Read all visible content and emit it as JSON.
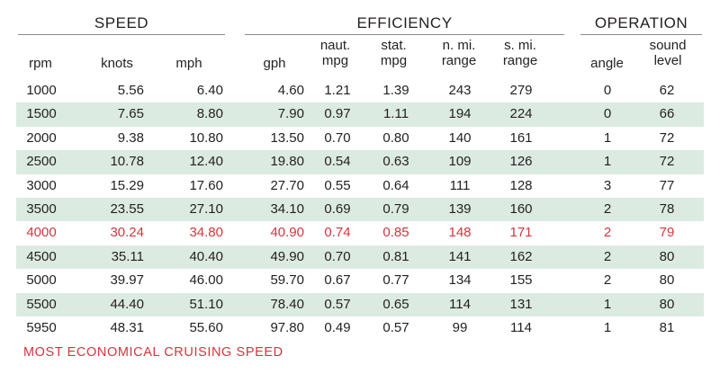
{
  "groups": {
    "speed": "SPEED",
    "efficiency": "EFFICIENCY",
    "operation": "OPERATION"
  },
  "columns": [
    {
      "key": "rpm",
      "label": "rpm"
    },
    {
      "key": "knots",
      "label": "knots"
    },
    {
      "key": "mph",
      "label": "mph"
    },
    {
      "key": "gph",
      "label": "gph"
    },
    {
      "key": "naut_mpg",
      "label": "naut.\nmpg"
    },
    {
      "key": "stat_mpg",
      "label": "stat.\nmpg"
    },
    {
      "key": "n_mi_range",
      "label": "n. mi.\nrange"
    },
    {
      "key": "s_mi_range",
      "label": "s. mi.\nrange"
    },
    {
      "key": "angle",
      "label": "angle"
    },
    {
      "key": "sound_level",
      "label": "sound\nlevel"
    }
  ],
  "rows": [
    [
      "1000",
      "5.56",
      "6.40",
      "4.60",
      "1.21",
      "1.39",
      "243",
      "279",
      "0",
      "62"
    ],
    [
      "1500",
      "7.65",
      "8.80",
      "7.90",
      "0.97",
      "1.11",
      "194",
      "224",
      "0",
      "66"
    ],
    [
      "2000",
      "9.38",
      "10.80",
      "13.50",
      "0.70",
      "0.80",
      "140",
      "161",
      "1",
      "72"
    ],
    [
      "2500",
      "10.78",
      "12.40",
      "19.80",
      "0.54",
      "0.63",
      "109",
      "126",
      "1",
      "72"
    ],
    [
      "3000",
      "15.29",
      "17.60",
      "27.70",
      "0.55",
      "0.64",
      "111",
      "128",
      "3",
      "77"
    ],
    [
      "3500",
      "23.55",
      "27.10",
      "34.10",
      "0.69",
      "0.79",
      "139",
      "160",
      "2",
      "78"
    ],
    [
      "4000",
      "30.24",
      "34.80",
      "40.90",
      "0.74",
      "0.85",
      "148",
      "171",
      "2",
      "79"
    ],
    [
      "4500",
      "35.11",
      "40.40",
      "49.90",
      "0.70",
      "0.81",
      "141",
      "162",
      "2",
      "80"
    ],
    [
      "5000",
      "39.97",
      "46.00",
      "59.70",
      "0.67",
      "0.77",
      "134",
      "155",
      "2",
      "80"
    ],
    [
      "5500",
      "44.40",
      "51.10",
      "78.40",
      "0.57",
      "0.65",
      "114",
      "131",
      "1",
      "80"
    ],
    [
      "5950",
      "48.31",
      "55.60",
      "97.80",
      "0.49",
      "0.57",
      "99",
      "114",
      "1",
      "81"
    ]
  ],
  "highlight_row_index": 6,
  "footnote": "MOST ECONOMICAL CRUISING SPEED",
  "colors": {
    "highlight": "#d7343c",
    "shaded_row": "#dcebe2",
    "rule": "#8a8a8a",
    "text": "#231f20"
  }
}
